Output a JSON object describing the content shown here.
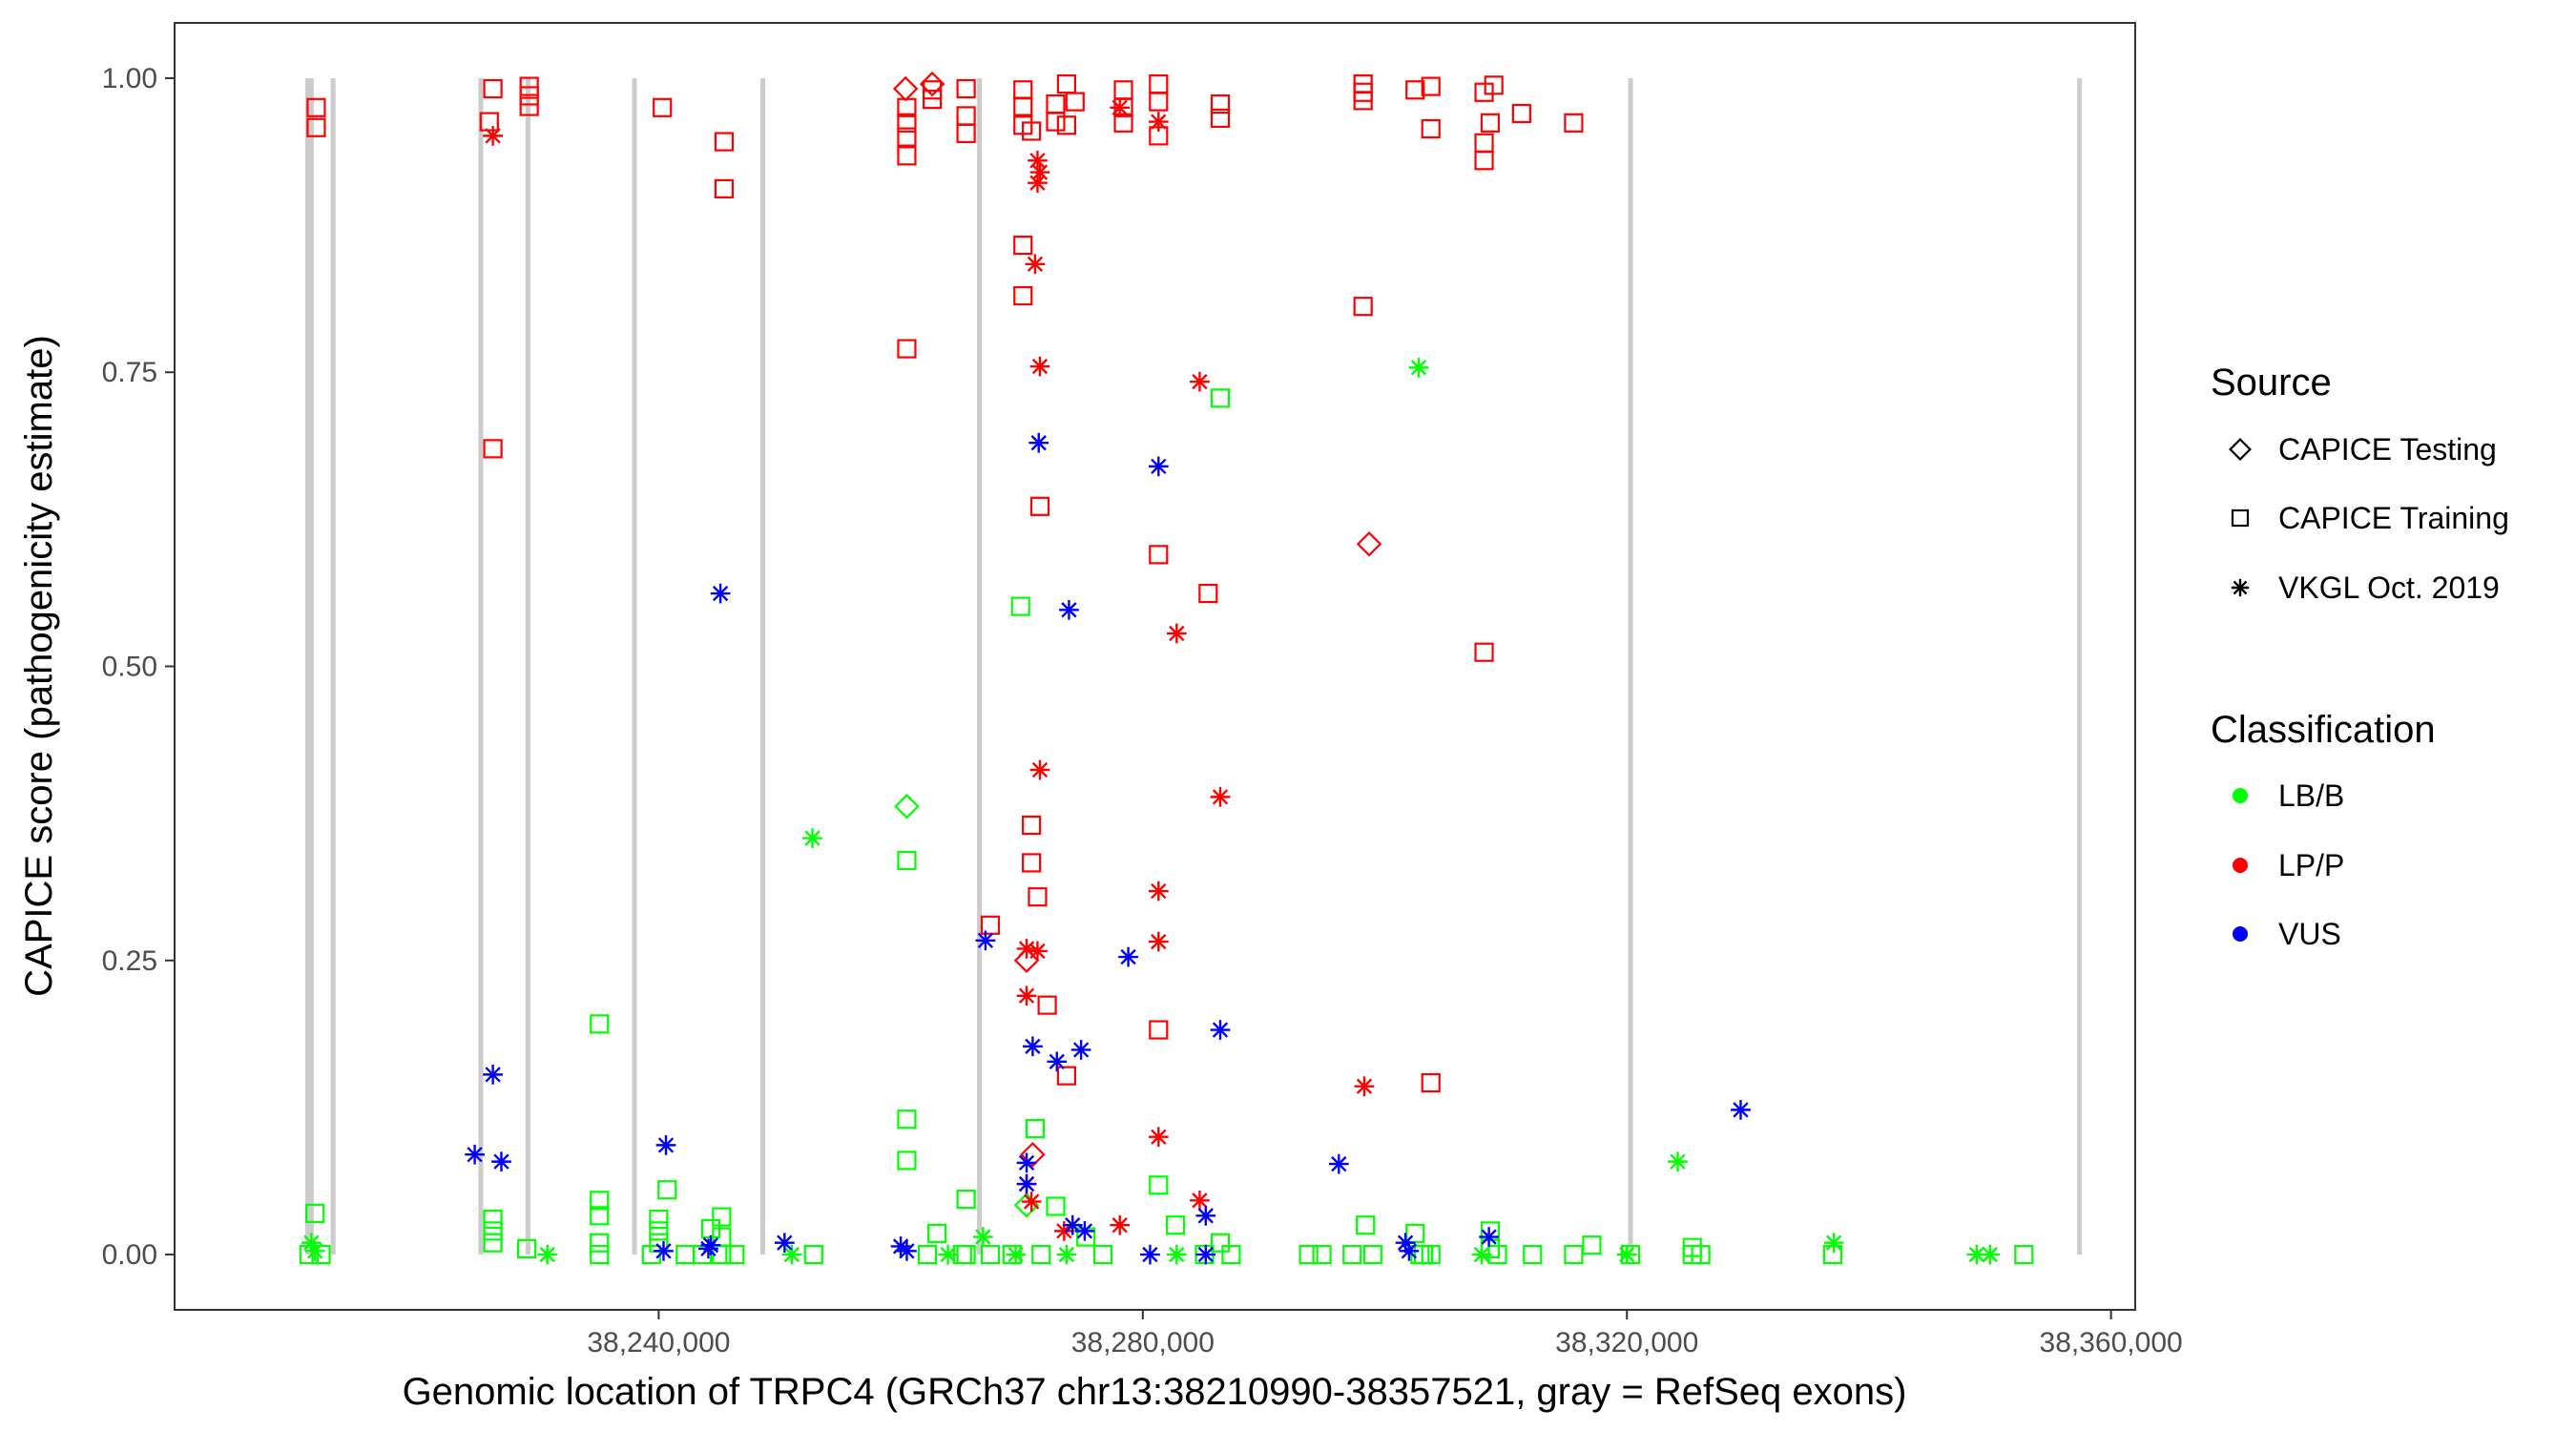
{
  "chart_data": {
    "type": "scatter",
    "xlabel": "Genomic location of TRPC4 (GRCh37 chr13:38210990-38357521, gray = RefSeq exons)",
    "ylabel": "CAPICE score (pathogenicity estimate)",
    "xlim": [
      38200000,
      38362000
    ],
    "ylim": [
      -0.047,
      1.047
    ],
    "x_ticks": [
      38240000,
      38280000,
      38320000,
      38360000
    ],
    "x_tick_labels": [
      "38,240,000",
      "38,280,000",
      "38,320,000",
      "38,360,000"
    ],
    "y_ticks": [
      0,
      0.25,
      0.5,
      0.75,
      1.0
    ],
    "y_tick_labels": [
      "0.00",
      "0.25",
      "0.50",
      "0.75",
      "1.00"
    ],
    "exons": [
      38210990,
      38211300,
      38213100,
      38225300,
      38229200,
      38238000,
      38248600,
      38266500,
      38320300,
      38357400
    ],
    "legend": {
      "source": {
        "title": "Source",
        "items": [
          {
            "shape": "diamond",
            "label": "CAPICE Testing"
          },
          {
            "shape": "square",
            "label": "CAPICE Training"
          },
          {
            "shape": "asterisk",
            "label": "VKGL Oct. 2019"
          }
        ]
      },
      "classification": {
        "title": "Classification",
        "items": [
          {
            "color": "#00ff00",
            "label": "LB/B"
          },
          {
            "color": "#ff0000",
            "label": "LP/P"
          },
          {
            "color": "#0000ff",
            "label": "VUS"
          }
        ]
      }
    },
    "series": [
      {
        "name": "CAPICE Training LP/P",
        "shape": "square",
        "color": "#ff0000",
        "points": [
          [
            38211700,
            0.975
          ],
          [
            38211700,
            0.958
          ],
          [
            38226300,
            0.991
          ],
          [
            38226000,
            0.963
          ],
          [
            38226300,
            0.685
          ],
          [
            38229300,
            0.993
          ],
          [
            38229300,
            0.985
          ],
          [
            38229300,
            0.976
          ],
          [
            38240300,
            0.975
          ],
          [
            38245400,
            0.946
          ],
          [
            38245400,
            0.906
          ],
          [
            38260500,
            0.975
          ],
          [
            38260500,
            0.962
          ],
          [
            38260500,
            0.95
          ],
          [
            38260500,
            0.934
          ],
          [
            38260500,
            0.77
          ],
          [
            38262600,
            0.99
          ],
          [
            38262600,
            0.982
          ],
          [
            38265400,
            0.991
          ],
          [
            38265400,
            0.968
          ],
          [
            38265400,
            0.953
          ],
          [
            38270100,
            0.99
          ],
          [
            38270100,
            0.976
          ],
          [
            38270100,
            0.96
          ],
          [
            38270100,
            0.858
          ],
          [
            38270100,
            0.815
          ],
          [
            38270800,
            0.955
          ],
          [
            38270800,
            0.365
          ],
          [
            38270800,
            0.333
          ],
          [
            38271300,
            0.304
          ],
          [
            38271500,
            0.636
          ],
          [
            38272100,
            0.212
          ],
          [
            38272800,
            0.978
          ],
          [
            38272800,
            0.963
          ],
          [
            38273700,
            0.995
          ],
          [
            38273700,
            0.96
          ],
          [
            38273700,
            0.152
          ],
          [
            38274400,
            0.98
          ],
          [
            38278400,
            0.99
          ],
          [
            38278400,
            0.975
          ],
          [
            38278400,
            0.962
          ],
          [
            38281300,
            0.995
          ],
          [
            38281300,
            0.98
          ],
          [
            38281300,
            0.951
          ],
          [
            38281300,
            0.595
          ],
          [
            38281300,
            0.191
          ],
          [
            38285400,
            0.562
          ],
          [
            38286400,
            0.978
          ],
          [
            38286400,
            0.966
          ],
          [
            38267400,
            0.28
          ],
          [
            38298200,
            0.995
          ],
          [
            38298200,
            0.988
          ],
          [
            38298200,
            0.981
          ],
          [
            38298200,
            0.806
          ],
          [
            38302500,
            0.99
          ],
          [
            38303800,
            0.993
          ],
          [
            38303800,
            0.957
          ],
          [
            38303800,
            0.146
          ],
          [
            38308200,
            0.988
          ],
          [
            38308200,
            0.945
          ],
          [
            38308200,
            0.93
          ],
          [
            38308200,
            0.512
          ],
          [
            38308700,
            0.962
          ],
          [
            38309000,
            0.994
          ],
          [
            38311300,
            0.97
          ],
          [
            38315600,
            0.962
          ]
        ]
      },
      {
        "name": "CAPICE Training LB/B",
        "shape": "square",
        "color": "#00ff00",
        "points": [
          [
            38211100,
            0.0
          ],
          [
            38211600,
            0.035
          ],
          [
            38212100,
            0.0
          ],
          [
            38226300,
            0.03
          ],
          [
            38226300,
            0.02
          ],
          [
            38226300,
            0.01
          ],
          [
            38229100,
            0.005
          ],
          [
            38235100,
            0.196
          ],
          [
            38235100,
            0.046
          ],
          [
            38235100,
            0.033
          ],
          [
            38235100,
            0.01
          ],
          [
            38235100,
            0.0
          ],
          [
            38239400,
            0.0
          ],
          [
            38240000,
            0.03
          ],
          [
            38240000,
            0.02
          ],
          [
            38240000,
            0.01
          ],
          [
            38240700,
            0.055
          ],
          [
            38242200,
            0.0
          ],
          [
            38243600,
            0.0
          ],
          [
            38244300,
            0.022
          ],
          [
            38245200,
            0.032
          ],
          [
            38245200,
            0.015
          ],
          [
            38245200,
            0.0
          ],
          [
            38246300,
            0.0
          ],
          [
            38252800,
            0.0
          ],
          [
            38260500,
            0.335
          ],
          [
            38260500,
            0.115
          ],
          [
            38260500,
            0.08
          ],
          [
            38262200,
            0.0
          ],
          [
            38263000,
            0.018
          ],
          [
            38265100,
            0.0
          ],
          [
            38265400,
            0.047
          ],
          [
            38265400,
            0.0
          ],
          [
            38267400,
            0.0
          ],
          [
            38269200,
            0.0
          ],
          [
            38269900,
            0.551
          ],
          [
            38271100,
            0.107
          ],
          [
            38271600,
            0.0
          ],
          [
            38272800,
            0.041
          ],
          [
            38275300,
            0.015
          ],
          [
            38276700,
            0.0
          ],
          [
            38281300,
            0.059
          ],
          [
            38282700,
            0.025
          ],
          [
            38285100,
            0.0
          ],
          [
            38286400,
            0.728
          ],
          [
            38286400,
            0.01
          ],
          [
            38287300,
            0.0
          ],
          [
            38293700,
            0.0
          ],
          [
            38294800,
            0.0
          ],
          [
            38297300,
            0.0
          ],
          [
            38298400,
            0.025
          ],
          [
            38299000,
            0.0
          ],
          [
            38302500,
            0.018
          ],
          [
            38302900,
            0.0
          ],
          [
            38303200,
            0.0
          ],
          [
            38303800,
            0.0
          ],
          [
            38308700,
            0.02
          ],
          [
            38308700,
            0.005
          ],
          [
            38309300,
            0.0
          ],
          [
            38312200,
            0.0
          ],
          [
            38315600,
            0.0
          ],
          [
            38317100,
            0.008
          ],
          [
            38320300,
            0.0
          ],
          [
            38325400,
            0.006
          ],
          [
            38325400,
            0.0
          ],
          [
            38326100,
            0.0
          ],
          [
            38337000,
            0.0
          ],
          [
            38352800,
            0.0
          ]
        ]
      },
      {
        "name": "CAPICE Testing LP/P",
        "shape": "diamond",
        "color": "#ff0000",
        "points": [
          [
            38260400,
            0.991
          ],
          [
            38262600,
            0.995
          ],
          [
            38270400,
            0.25
          ],
          [
            38270900,
            0.085
          ],
          [
            38298700,
            0.604
          ]
        ]
      },
      {
        "name": "CAPICE Testing LB/B",
        "shape": "diamond",
        "color": "#00ff00",
        "points": [
          [
            38260500,
            0.381
          ],
          [
            38270400,
            0.042
          ]
        ]
      },
      {
        "name": "VKGL LP/P",
        "shape": "asterisk",
        "color": "#ff0000",
        "points": [
          [
            38226300,
            0.951
          ],
          [
            38271100,
            0.842
          ],
          [
            38271300,
            0.93
          ],
          [
            38271300,
            0.911
          ],
          [
            38271500,
            0.92
          ],
          [
            38271500,
            0.755
          ],
          [
            38271500,
            0.412
          ],
          [
            38270400,
            0.26
          ],
          [
            38271300,
            0.258
          ],
          [
            38270400,
            0.22
          ],
          [
            38270400,
            0.06
          ],
          [
            38270800,
            0.045
          ],
          [
            38273500,
            0.02
          ],
          [
            38278100,
            0.975
          ],
          [
            38278100,
            0.025
          ],
          [
            38281300,
            0.963
          ],
          [
            38281300,
            0.309
          ],
          [
            38281300,
            0.266
          ],
          [
            38281300,
            0.1
          ],
          [
            38282800,
            0.528
          ],
          [
            38284700,
            0.742
          ],
          [
            38286400,
            0.389
          ],
          [
            38284700,
            0.046
          ],
          [
            38298300,
            0.143
          ]
        ]
      },
      {
        "name": "VKGL LB/B",
        "shape": "asterisk",
        "color": "#00ff00",
        "points": [
          [
            38211300,
            0.01
          ],
          [
            38211600,
            0.003
          ],
          [
            38230800,
            0.0
          ],
          [
            38251000,
            0.0
          ],
          [
            38252700,
            0.354
          ],
          [
            38266800,
            0.015
          ],
          [
            38269500,
            0.0
          ],
          [
            38282800,
            0.0
          ],
          [
            38302800,
            0.754
          ],
          [
            38324200,
            0.079
          ],
          [
            38320000,
            0.0
          ],
          [
            38337100,
            0.01
          ],
          [
            38348900,
            0.0
          ],
          [
            38350000,
            0.0
          ],
          [
            38263900,
            0.0
          ],
          [
            38273700,
            0.0
          ],
          [
            38308000,
            0.0
          ]
        ]
      },
      {
        "name": "VKGL VUS",
        "shape": "asterisk",
        "color": "#0000ff",
        "points": [
          [
            38226300,
            0.153
          ],
          [
            38224800,
            0.085
          ],
          [
            38227000,
            0.079
          ],
          [
            38240600,
            0.093
          ],
          [
            38245100,
            0.562
          ],
          [
            38240400,
            0.003
          ],
          [
            38244100,
            0.005
          ],
          [
            38244300,
            0.008
          ],
          [
            38250400,
            0.01
          ],
          [
            38260000,
            0.007
          ],
          [
            38260500,
            0.003
          ],
          [
            38267000,
            0.267
          ],
          [
            38270400,
            0.078
          ],
          [
            38270400,
            0.06
          ],
          [
            38270900,
            0.177
          ],
          [
            38271400,
            0.69
          ],
          [
            38272900,
            0.164
          ],
          [
            38273900,
            0.548
          ],
          [
            38274200,
            0.025
          ],
          [
            38274900,
            0.174
          ],
          [
            38275200,
            0.02
          ],
          [
            38278800,
            0.253
          ],
          [
            38280600,
            0.0
          ],
          [
            38281300,
            0.67
          ],
          [
            38285200,
            0.033
          ],
          [
            38285200,
            0.0
          ],
          [
            38286400,
            0.191
          ],
          [
            38296200,
            0.077
          ],
          [
            38301700,
            0.01
          ],
          [
            38302000,
            0.003
          ],
          [
            38308600,
            0.015
          ],
          [
            38329400,
            0.123
          ]
        ]
      }
    ]
  }
}
